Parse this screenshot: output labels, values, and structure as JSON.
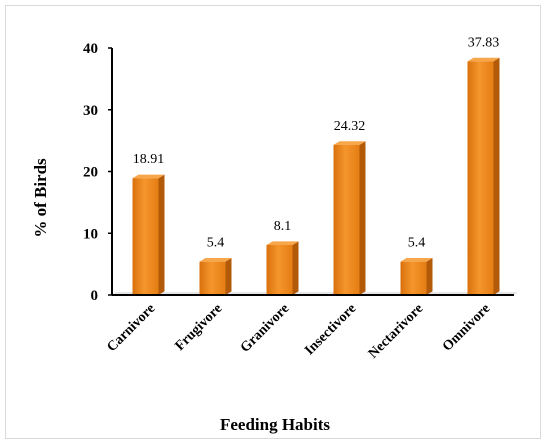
{
  "chart_data": {
    "type": "bar",
    "title": "",
    "xlabel": "Feeding Habits",
    "ylabel": "% of Birds",
    "categories": [
      "Carnivore",
      "Frugivore",
      "Granivore",
      "Insectivore",
      "Nectarivore",
      "Omnivore"
    ],
    "values": [
      18.91,
      5.4,
      8.1,
      24.32,
      5.4,
      37.83
    ],
    "data_labels": [
      "18.91",
      "5.4",
      "8.1",
      "24.32",
      "5.4",
      "37.83"
    ],
    "yticks": [
      0,
      10,
      20,
      30,
      40
    ],
    "ylim": [
      0,
      40
    ],
    "grid": false,
    "legend": "none",
    "colors": {
      "bar_front": "#f28a1c",
      "bar_side": "#b25a08",
      "bar_top": "#f7a64a",
      "axis": "#000000"
    }
  }
}
